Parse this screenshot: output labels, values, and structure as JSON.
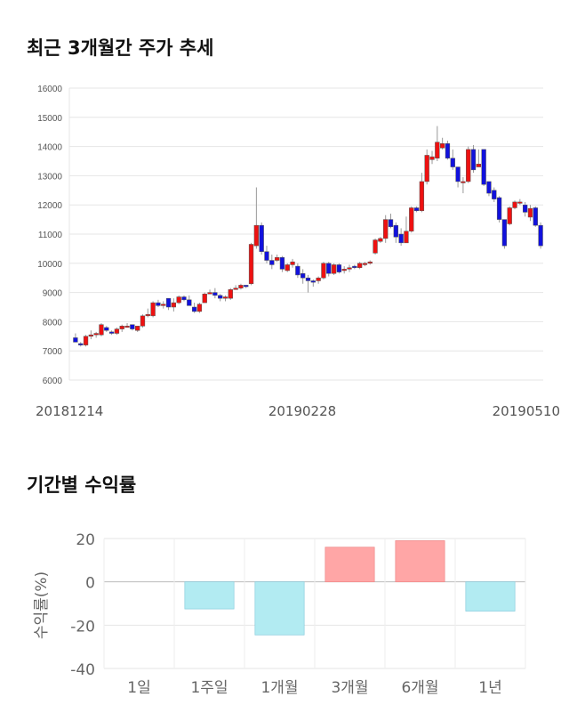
{
  "titles": {
    "price": "최근 3개월간 주가 추세",
    "returns": "기간별 수익률"
  },
  "colors": {
    "up": "#ee1111",
    "down": "#1111dd",
    "pos": "#ffa6a6",
    "neg": "#b2ebf2"
  },
  "chart_data": [
    {
      "type": "candlestick",
      "title": "최근 3개월간 주가 추세",
      "ylim": [
        6000,
        16000
      ],
      "yticks": [
        6000,
        7000,
        8000,
        9000,
        10000,
        11000,
        12000,
        13000,
        14000,
        15000,
        16000
      ],
      "xlabels": [
        "20181214",
        "20190228",
        "20190510"
      ],
      "ohlc_order": [
        "open",
        "high",
        "low",
        "close"
      ],
      "candles": [
        [
          7450,
          7600,
          7300,
          7300
        ],
        [
          7250,
          7300,
          7150,
          7200
        ],
        [
          7200,
          7550,
          7150,
          7500
        ],
        [
          7500,
          7700,
          7400,
          7550
        ],
        [
          7550,
          7650,
          7450,
          7600
        ],
        [
          7550,
          7950,
          7500,
          7900
        ],
        [
          7800,
          7850,
          7650,
          7700
        ],
        [
          7650,
          7700,
          7550,
          7600
        ],
        [
          7600,
          7800,
          7550,
          7750
        ],
        [
          7750,
          7900,
          7650,
          7850
        ],
        [
          7850,
          7950,
          7800,
          7850
        ],
        [
          7900,
          7900,
          7700,
          7750
        ],
        [
          7700,
          7850,
          7650,
          7850
        ],
        [
          7850,
          8250,
          7800,
          8200
        ],
        [
          8200,
          8450,
          8150,
          8250
        ],
        [
          8200,
          8700,
          8150,
          8650
        ],
        [
          8650,
          8750,
          8500,
          8550
        ],
        [
          8550,
          8700,
          8450,
          8600
        ],
        [
          8800,
          8800,
          8400,
          8500
        ],
        [
          8500,
          8800,
          8350,
          8650
        ],
        [
          8650,
          8900,
          8600,
          8850
        ],
        [
          8850,
          8900,
          8700,
          8750
        ],
        [
          8750,
          8900,
          8550,
          8550
        ],
        [
          8500,
          8650,
          8300,
          8350
        ],
        [
          8350,
          8650,
          8300,
          8600
        ],
        [
          8650,
          9000,
          8650,
          8950
        ],
        [
          8950,
          9100,
          8950,
          9000
        ],
        [
          9000,
          9150,
          8800,
          8900
        ],
        [
          8900,
          8950,
          8700,
          8800
        ],
        [
          8800,
          8900,
          8700,
          8850
        ],
        [
          8800,
          9150,
          8750,
          9100
        ],
        [
          9100,
          9250,
          9100,
          9150
        ],
        [
          9150,
          9300,
          9100,
          9250
        ],
        [
          9250,
          9250,
          9150,
          9200
        ],
        [
          9300,
          10700,
          9250,
          10650
        ],
        [
          10600,
          12600,
          10500,
          11300
        ],
        [
          11300,
          11400,
          10300,
          10400
        ],
        [
          10400,
          10600,
          10000,
          10100
        ],
        [
          10100,
          10300,
          9800,
          9950
        ],
        [
          10100,
          10300,
          10050,
          10200
        ],
        [
          10200,
          10250,
          9700,
          9800
        ],
        [
          9750,
          10000,
          9700,
          9950
        ],
        [
          9950,
          10150,
          9850,
          10050
        ],
        [
          9900,
          10000,
          9500,
          9600
        ],
        [
          9650,
          9800,
          9300,
          9500
        ],
        [
          9500,
          9600,
          9000,
          9400
        ],
        [
          9400,
          9450,
          9200,
          9350
        ],
        [
          9400,
          9550,
          9300,
          9500
        ],
        [
          9500,
          10050,
          9450,
          10000
        ],
        [
          10000,
          10050,
          9550,
          9650
        ],
        [
          9650,
          10000,
          9600,
          9950
        ],
        [
          9950,
          10000,
          9650,
          9700
        ],
        [
          9750,
          9900,
          9650,
          9800
        ],
        [
          9800,
          9950,
          9700,
          9850
        ],
        [
          9900,
          9950,
          9800,
          9850
        ],
        [
          9850,
          10050,
          9800,
          10000
        ],
        [
          9950,
          10050,
          9900,
          10000
        ],
        [
          10000,
          10100,
          9950,
          10050
        ],
        [
          10350,
          10850,
          10300,
          10800
        ],
        [
          10750,
          10900,
          10700,
          10850
        ],
        [
          10850,
          11650,
          10700,
          11500
        ],
        [
          11500,
          11700,
          11200,
          11250
        ],
        [
          11300,
          11400,
          10700,
          10900
        ],
        [
          11000,
          11200,
          10600,
          10700
        ],
        [
          10700,
          11600,
          10700,
          11100
        ],
        [
          11100,
          11950,
          11050,
          11900
        ],
        [
          11900,
          11950,
          11750,
          11800
        ],
        [
          11800,
          13100,
          11750,
          12800
        ],
        [
          12800,
          13900,
          12700,
          13700
        ],
        [
          13550,
          13850,
          13400,
          13650
        ],
        [
          13600,
          14700,
          13500,
          14150
        ],
        [
          13950,
          14300,
          13900,
          14100
        ],
        [
          14100,
          14200,
          13550,
          13600
        ],
        [
          13600,
          13900,
          13200,
          13300
        ],
        [
          13300,
          13300,
          12600,
          12800
        ],
        [
          12800,
          12950,
          12400,
          12800
        ],
        [
          12800,
          14000,
          12750,
          13900
        ],
        [
          13900,
          14050,
          13100,
          13200
        ],
        [
          13300,
          13900,
          13300,
          13400
        ],
        [
          13900,
          13900,
          12650,
          12700
        ],
        [
          12800,
          12800,
          12300,
          12400
        ],
        [
          12500,
          12600,
          12100,
          12200
        ],
        [
          12250,
          12300,
          11400,
          11500
        ],
        [
          11500,
          11500,
          10500,
          10600
        ],
        [
          11350,
          11950,
          11300,
          11900
        ],
        [
          11900,
          12150,
          11850,
          12100
        ],
        [
          12100,
          12200,
          12000,
          12100
        ],
        [
          12000,
          12100,
          11600,
          11750
        ],
        [
          11580,
          12000,
          11450,
          11880
        ],
        [
          11900,
          11950,
          11250,
          11300
        ],
        [
          11300,
          11400,
          10500,
          10600
        ]
      ]
    },
    {
      "type": "bar",
      "title": "기간별 수익률",
      "ylabel": "수익률(%)",
      "ylim": [
        -40,
        20
      ],
      "yticks": [
        20,
        0,
        -20,
        -40
      ],
      "categories": [
        "1일",
        "1주일",
        "1개월",
        "3개월",
        "6개월",
        "1년"
      ],
      "values": [
        0,
        -12.5,
        -24.5,
        16,
        19,
        -13.5
      ]
    }
  ]
}
